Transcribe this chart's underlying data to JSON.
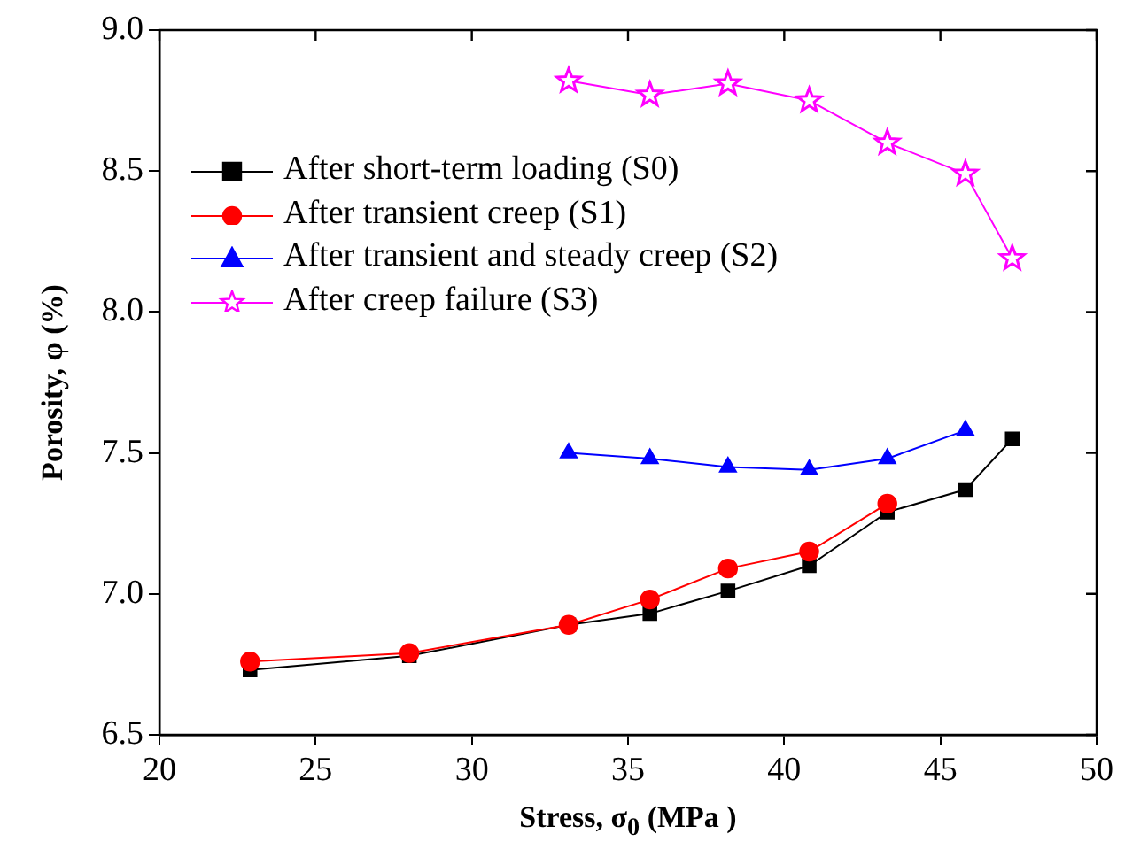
{
  "chart_data": {
    "type": "line",
    "xlabel": "Stress, σ$_{0}$ (MPa )",
    "ylabel": "Porosity, φ (%)",
    "xlim": [
      20,
      50
    ],
    "xticks": [
      20,
      25,
      30,
      35,
      40,
      45,
      50
    ],
    "ylim": [
      6.5,
      9.0
    ],
    "yticks": [
      6.5,
      {
        "value": 7,
        "label": "7.0"
      },
      7.5,
      {
        "value": 8,
        "label": "8.0"
      },
      8.5,
      {
        "value": 9,
        "label": "9.0"
      }
    ],
    "grid": false,
    "legend": "top left",
    "series": [
      {
        "name": "After short-term loading (S0)",
        "color": "#000000",
        "marker": "square",
        "x": [
          22.9,
          28.0,
          33.1,
          35.7,
          38.2,
          40.8,
          43.3,
          45.8,
          47.3
        ],
        "values": [
          6.73,
          6.78,
          6.89,
          6.93,
          7.01,
          7.1,
          7.29,
          7.37,
          7.55
        ]
      },
      {
        "name": "After transient creep (S1)",
        "color": "#ff0000",
        "marker": "circle",
        "x": [
          22.9,
          28.0,
          33.1,
          35.7,
          38.2,
          40.8,
          43.3
        ],
        "values": [
          6.76,
          6.79,
          6.89,
          6.98,
          7.09,
          7.15,
          7.32
        ]
      },
      {
        "name": "After transient and steady creep (S2)",
        "color": "#0000ff",
        "marker": "triangle",
        "x": [
          33.1,
          35.7,
          38.2,
          40.8,
          43.3,
          45.8
        ],
        "values": [
          7.5,
          7.48,
          7.45,
          7.44,
          7.48,
          7.58
        ]
      },
      {
        "name": "After creep failure (S3)",
        "color": "#ff00ff",
        "marker": "star",
        "x": [
          33.1,
          35.7,
          38.2,
          40.8,
          43.3,
          45.8,
          47.3
        ],
        "values": [
          8.82,
          8.77,
          8.81,
          8.75,
          8.6,
          8.49,
          8.19
        ]
      }
    ]
  }
}
